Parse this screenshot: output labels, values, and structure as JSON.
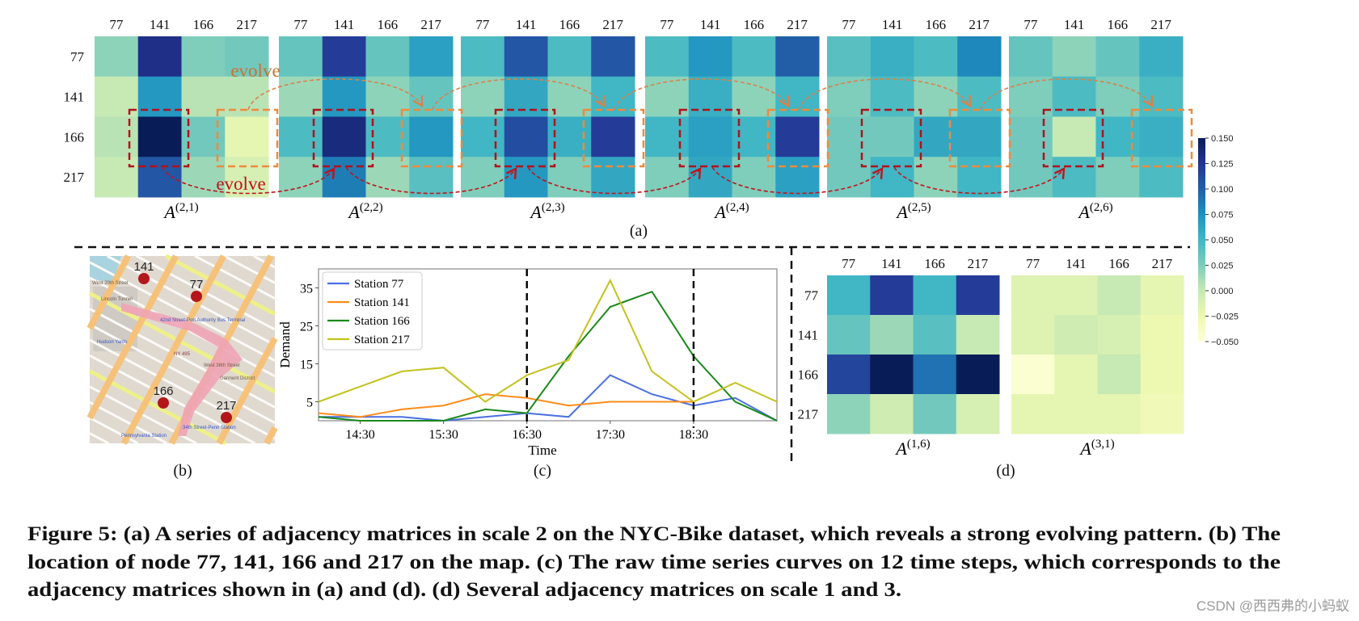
{
  "figure": {
    "panel_labels": {
      "a": "(a)",
      "b": "(b)",
      "c": "(c)",
      "d": "(d)"
    },
    "evolve_labels": {
      "orange": "evolve",
      "red": "evolve"
    },
    "colors": {
      "orange_arrow": "#d9824a",
      "red_arrow": "#c0141c",
      "orange_box": "#ef8a3c",
      "red_box": "#b0121b"
    },
    "map": {
      "markers": [
        {
          "label": "141"
        },
        {
          "label": "77"
        },
        {
          "label": "166"
        },
        {
          "label": "217"
        }
      ],
      "place_labels": [
        "Lincoln Tunnel",
        "NY 495",
        "42nd Street-Port Authority Bus Terminal",
        "34th Street-Penn Station",
        "Pennsylvania Station",
        "Hudson Yards",
        "Garment District",
        "West 36th Street",
        "West 39th Street"
      ]
    },
    "caption": {
      "lines": [
        "Figure 5: (a) A series of adjacency matrices in scale 2 on the NYC-Bike dataset, which reveals a strong evolving pattern. (b) The",
        "location of node 77, 141, 166 and 217 on the map. (c) The raw time series curves on 12 time steps, which corresponds to the",
        "adjacency matrices shown in (a) and (d). (d) Several adjacency matrices on scale 1 and 3."
      ]
    },
    "watermark": "CSDN @西西弗的小蚂蚁"
  },
  "chart_data": [
    {
      "type": "heatmap",
      "group": "a",
      "colormap": "YlGnBu",
      "vmin": -0.05,
      "vmax": 0.15,
      "colorbar": {
        "ticks": [
          "0.150",
          "0.125",
          "0.100",
          "0.075",
          "0.050",
          "0.025",
          "0.000",
          "−0.025",
          "−0.050"
        ]
      },
      "rows": [
        "77",
        "141",
        "166",
        "217"
      ],
      "cols": [
        "77",
        "141",
        "166",
        "217"
      ],
      "matrices": [
        {
          "symbol": "A",
          "superscript": "(2,1)",
          "values": [
            [
              0.02,
              0.13,
              0.025,
              0.03
            ],
            [
              0.0,
              0.07,
              0.005,
              0.005
            ],
            [
              0.005,
              0.15,
              0.03,
              -0.02
            ],
            [
              0.0,
              0.105,
              0.015,
              -0.01
            ]
          ]
        },
        {
          "symbol": "A",
          "superscript": "(2,2)",
          "values": [
            [
              0.035,
              0.12,
              0.035,
              0.065
            ],
            [
              0.015,
              0.07,
              0.02,
              0.035
            ],
            [
              0.045,
              0.135,
              0.045,
              0.07
            ],
            [
              0.02,
              0.085,
              0.015,
              0.04
            ]
          ]
        },
        {
          "symbol": "A",
          "superscript": "(2,3)",
          "values": [
            [
              0.045,
              0.105,
              0.045,
              0.105
            ],
            [
              0.02,
              0.06,
              0.02,
              0.05
            ],
            [
              0.05,
              0.11,
              0.055,
              0.12
            ],
            [
              0.025,
              0.07,
              0.025,
              0.06
            ]
          ]
        },
        {
          "symbol": "A",
          "superscript": "(2,4)",
          "values": [
            [
              0.045,
              0.07,
              0.045,
              0.1
            ],
            [
              0.02,
              0.055,
              0.02,
              0.05
            ],
            [
              0.05,
              0.065,
              0.05,
              0.12
            ],
            [
              0.025,
              0.06,
              0.025,
              0.065
            ]
          ]
        },
        {
          "symbol": "A",
          "superscript": "(2,5)",
          "values": [
            [
              0.04,
              0.055,
              0.045,
              0.08
            ],
            [
              0.025,
              0.045,
              0.02,
              0.045
            ],
            [
              0.03,
              0.03,
              0.06,
              0.06
            ],
            [
              0.03,
              0.05,
              0.02,
              0.05
            ]
          ]
        },
        {
          "symbol": "A",
          "superscript": "(2,6)",
          "values": [
            [
              0.035,
              0.02,
              0.035,
              0.055
            ],
            [
              0.025,
              0.045,
              0.025,
              0.045
            ],
            [
              0.03,
              0.0,
              0.05,
              0.055
            ],
            [
              0.03,
              0.045,
              0.025,
              0.045
            ]
          ]
        }
      ]
    },
    {
      "type": "line",
      "group": "c",
      "xlabel": "Time",
      "ylabel": "Demand",
      "x": [
        "14:00",
        "14:30",
        "15:00",
        "15:30",
        "16:00",
        "16:30",
        "17:00",
        "17:30",
        "18:00",
        "18:30",
        "19:00",
        "19:30"
      ],
      "xticks": [
        "14:30",
        "15:30",
        "16:30",
        "17:30",
        "18:30"
      ],
      "yticks": [
        "5",
        "15",
        "25",
        "35"
      ],
      "ylim": [
        0,
        40
      ],
      "vlines": [
        "16:30",
        "18:30"
      ],
      "legend": "top-left",
      "series": [
        {
          "name": "Station 77",
          "color": "#4a6fe3",
          "values": [
            1,
            1,
            1,
            0,
            1,
            2,
            1,
            12,
            7,
            4,
            6,
            0
          ]
        },
        {
          "name": "Station 141",
          "color": "#ff8c1a",
          "values": [
            2,
            1,
            3,
            4,
            7,
            6,
            4,
            5,
            5,
            5,
            null,
            null
          ]
        },
        {
          "name": "Station 166",
          "color": "#1a8a1a",
          "values": [
            1,
            0,
            0,
            0,
            3,
            2,
            17,
            30,
            34,
            17,
            5,
            0
          ]
        },
        {
          "name": "Station 217",
          "color": "#c2c21e",
          "values": [
            5,
            9,
            13,
            14,
            5,
            12,
            16,
            37,
            13,
            5,
            10,
            5
          ]
        }
      ]
    },
    {
      "type": "heatmap",
      "group": "d",
      "colormap": "YlGnBu",
      "vmin": -0.05,
      "vmax": 0.15,
      "rows": [
        "77",
        "141",
        "166",
        "217"
      ],
      "cols": [
        "77",
        "141",
        "166",
        "217"
      ],
      "matrices": [
        {
          "symbol": "A",
          "superscript": "(1,6)",
          "values": [
            [
              0.05,
              0.12,
              0.05,
              0.12
            ],
            [
              0.035,
              0.015,
              0.04,
              0.0
            ],
            [
              0.115,
              0.15,
              0.09,
              0.15
            ],
            [
              0.02,
              -0.005,
              0.03,
              -0.01
            ]
          ]
        },
        {
          "symbol": "A",
          "superscript": "(3,1)",
          "values": [
            [
              -0.015,
              -0.015,
              0.0,
              -0.02
            ],
            [
              -0.015,
              -0.005,
              -0.01,
              -0.025
            ],
            [
              -0.045,
              -0.02,
              0.0,
              -0.025
            ],
            [
              -0.02,
              -0.02,
              -0.02,
              -0.03
            ]
          ]
        }
      ]
    }
  ]
}
